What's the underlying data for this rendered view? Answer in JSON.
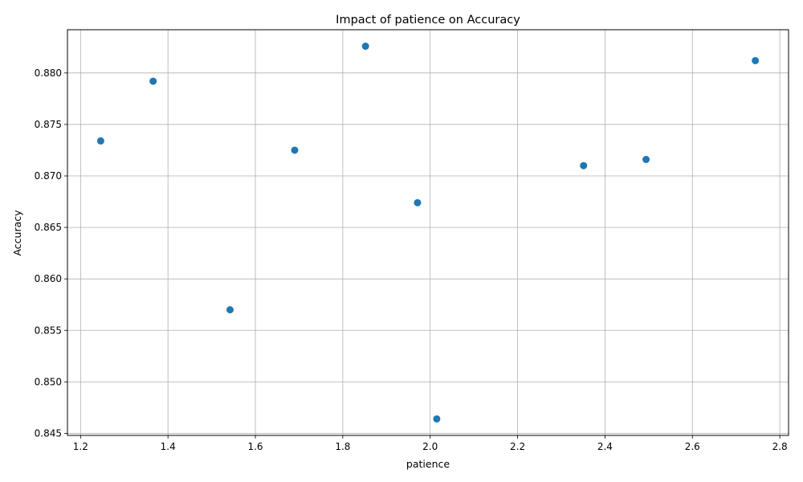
{
  "chart_data": {
    "type": "scatter",
    "title": "Impact of patience on Accuracy",
    "xlabel": "patience",
    "ylabel": "Accuracy",
    "xlim": [
      1.17,
      2.82
    ],
    "ylim": [
      0.8448,
      0.8842
    ],
    "xticks": [
      1.2,
      1.4,
      1.6,
      1.8,
      2.0,
      2.2,
      2.4,
      2.6,
      2.8
    ],
    "xtick_labels": [
      "1.2",
      "1.4",
      "1.6",
      "1.8",
      "2.0",
      "2.2",
      "2.4",
      "2.6",
      "2.8"
    ],
    "yticks": [
      0.845,
      0.85,
      0.855,
      0.86,
      0.865,
      0.87,
      0.875,
      0.88
    ],
    "ytick_labels": [
      "0.845",
      "0.850",
      "0.855",
      "0.860",
      "0.865",
      "0.870",
      "0.875",
      "0.880"
    ],
    "grid": true,
    "marker_color": "#1f77b4",
    "points": [
      {
        "x": 1.246,
        "y": 0.8734
      },
      {
        "x": 1.366,
        "y": 0.8792
      },
      {
        "x": 1.542,
        "y": 0.857
      },
      {
        "x": 1.69,
        "y": 0.8725
      },
      {
        "x": 1.852,
        "y": 0.8826
      },
      {
        "x": 1.971,
        "y": 0.8674
      },
      {
        "x": 2.015,
        "y": 0.8464
      },
      {
        "x": 2.351,
        "y": 0.871
      },
      {
        "x": 2.494,
        "y": 0.8716
      },
      {
        "x": 2.744,
        "y": 0.8812
      }
    ]
  }
}
